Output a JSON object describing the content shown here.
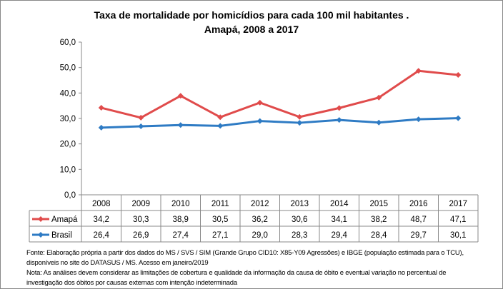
{
  "chart_data": {
    "type": "line",
    "title": [
      "Taxa de mortalidade por homicídios para cada 100 mil habitantes .",
      "Amapá, 2008 a 2017"
    ],
    "categories": [
      "2008",
      "2009",
      "2010",
      "2011",
      "2012",
      "2013",
      "2014",
      "2015",
      "2016",
      "2017"
    ],
    "series": [
      {
        "name": "Amapá",
        "color": "#e04b4b",
        "values": [
          34.2,
          30.3,
          38.9,
          30.5,
          36.2,
          30.6,
          34.1,
          38.2,
          48.7,
          47.1
        ],
        "labels": [
          "34,2",
          "30,3",
          "38,9",
          "30,5",
          "36,2",
          "30,6",
          "34,1",
          "38,2",
          "48,7",
          "47,1"
        ]
      },
      {
        "name": "Brasil",
        "color": "#2e7bc4",
        "values": [
          26.4,
          26.9,
          27.4,
          27.1,
          29.0,
          28.3,
          29.4,
          28.4,
          29.7,
          30.1
        ],
        "labels": [
          "26,4",
          "26,9",
          "27,4",
          "27,1",
          "29,0",
          "28,3",
          "29,4",
          "28,4",
          "29,7",
          "30,1"
        ]
      }
    ],
    "ylim": [
      0,
      60
    ],
    "yticks": [
      "0,0",
      "10,0",
      "20,0",
      "30,0",
      "40,0",
      "50,0",
      "60,0"
    ],
    "grid": false,
    "legend": "data-table"
  },
  "notes": [
    "Fonte: Elaboração própria a partir dos dados do MS / SVS / SIM (Grande Grupo CID10: X85-Y09 Agressões) e IBGE (população estimada para o TCU),",
    "disponíveis no site do DATASUS / MS. Acesso em janeiro/2019",
    "Nota:  As análises devem considerar as limitações de cobertura e qualidade da informação da causa de óbito e eventual variação no percentual de",
    "investigação dos óbitos por causas externas com intenção  indeterminada"
  ]
}
